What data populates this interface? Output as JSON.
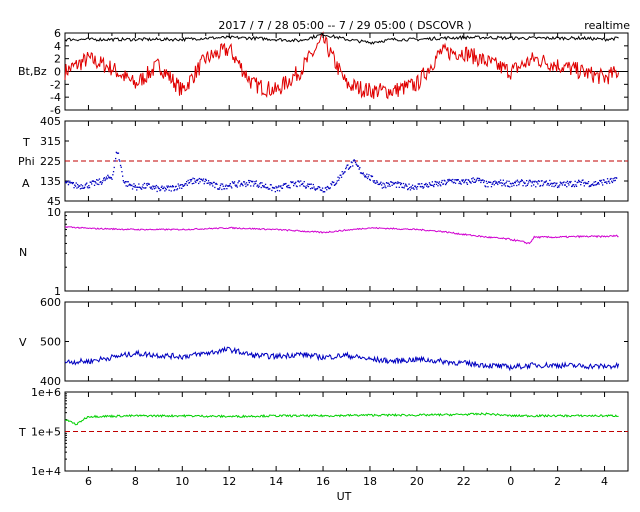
{
  "header": {
    "title": "2017 / 7 / 28   05:00 --  7 / 29   05:00 ( DSCOVR )",
    "mode": "realtime"
  },
  "x_axis": {
    "label": "UT",
    "tick_labels": [
      "6",
      "8",
      "10",
      "12",
      "14",
      "16",
      "18",
      "20",
      "22",
      "0",
      "2",
      "4"
    ],
    "tick_hours": [
      6,
      8,
      10,
      12,
      14,
      16,
      18,
      20,
      22,
      24,
      26,
      28
    ],
    "range_hours": [
      5,
      29
    ]
  },
  "colors": {
    "bt": "#000000",
    "bz": "#e00000",
    "phi": "#0000c0",
    "density": "#d000d0",
    "speed": "#0000c0",
    "temperature": "#00d000",
    "reference": "#c00000"
  },
  "panels": {
    "mag": {
      "ylabel": "Bt,Bz",
      "ylim": [
        -6,
        6
      ],
      "tick_labels": [
        "6",
        "4",
        "2",
        "0",
        "-2",
        "-4",
        "-6"
      ],
      "tick_values": [
        6,
        4,
        2,
        0,
        -2,
        -4,
        -6
      ]
    },
    "phi": {
      "ylabel_lines": [
        "T",
        "Phi",
        "A"
      ],
      "ylim": [
        45,
        405
      ],
      "tick_labels": [
        "405",
        "315",
        "225",
        "135",
        "45"
      ],
      "tick_values": [
        405,
        315,
        225,
        135,
        45
      ],
      "reference_value": 225
    },
    "density": {
      "ylabel": "N",
      "ylim": [
        1,
        10
      ],
      "scale": "log",
      "tick_labels": [
        "10",
        "1"
      ],
      "tick_values": [
        10,
        1
      ]
    },
    "speed": {
      "ylabel": "V",
      "ylim": [
        400,
        600
      ],
      "tick_labels": [
        "600",
        "500",
        "400"
      ],
      "tick_values": [
        600,
        500,
        400
      ]
    },
    "temperature": {
      "ylabel": "T",
      "ylim": [
        10000,
        1000000
      ],
      "scale": "log",
      "tick_labels": [
        "1e+6",
        "1e+5",
        "1e+4"
      ],
      "tick_values": [
        1000000,
        100000,
        10000
      ],
      "reference_value": 100000
    }
  },
  "chart_data": [
    {
      "type": "line",
      "title": "2017 / 7 / 28   05:00 --  7 / 29   05:00 ( DSCOVR )",
      "xlabel": "UT",
      "ylabel": "Bt,Bz",
      "ylim": [
        -6,
        6
      ],
      "x": [
        5,
        6,
        7,
        8,
        9,
        10,
        11,
        12,
        13,
        14,
        15,
        16,
        17,
        18,
        19,
        20,
        21,
        22,
        23,
        24,
        25,
        26,
        27,
        28,
        28.6
      ],
      "series": [
        {
          "name": "Bt",
          "values": [
            5.0,
            5.0,
            5.0,
            5.0,
            5.0,
            5.0,
            5.2,
            5.3,
            5.2,
            5.0,
            4.8,
            5.8,
            5.0,
            4.5,
            5.0,
            5.0,
            5.2,
            5.3,
            5.3,
            5.2,
            5.2,
            5.2,
            5.2,
            5.0,
            5.2
          ]
        },
        {
          "name": "Bz",
          "values": [
            0.0,
            2.0,
            0.5,
            -2.0,
            1.0,
            -3.0,
            2.0,
            3.5,
            -2.0,
            -3.0,
            0.0,
            5.0,
            -2.0,
            -3.0,
            -3.0,
            -2.0,
            3.0,
            3.0,
            1.5,
            0.0,
            2.0,
            1.0,
            0.0,
            -1.0,
            0.0
          ]
        }
      ]
    },
    {
      "type": "scatter",
      "ylabel": "Phi",
      "ylim": [
        45,
        405
      ],
      "x": [
        5,
        5.5,
        6,
        6.5,
        7,
        7.2,
        7.5,
        8,
        8.5,
        9,
        9.5,
        10,
        10.5,
        11,
        11.5,
        12,
        12.5,
        13,
        13.5,
        14,
        14.5,
        15,
        15.5,
        16,
        16.5,
        17,
        17.3,
        17.6,
        18,
        18.5,
        19,
        19.5,
        20,
        20.5,
        21,
        21.5,
        22,
        22.5,
        23,
        23.5,
        24,
        24.5,
        25,
        25.5,
        26,
        26.5,
        27,
        27.5,
        28,
        28.5
      ],
      "series": [
        {
          "name": "Phi",
          "values": [
            130,
            115,
            120,
            135,
            160,
            280,
            130,
            110,
            115,
            100,
            105,
            120,
            140,
            135,
            110,
            120,
            125,
            130,
            115,
            100,
            120,
            125,
            115,
            100,
            130,
            200,
            220,
            180,
            150,
            120,
            125,
            110,
            115,
            120,
            125,
            140,
            130,
            145,
            120,
            130,
            125,
            130,
            125,
            130,
            120,
            125,
            130,
            125,
            135,
            140
          ]
        }
      ]
    },
    {
      "type": "line",
      "ylabel": "N",
      "ylim": [
        1,
        10
      ],
      "x": [
        5,
        6,
        8,
        10,
        12,
        14,
        16,
        18,
        20,
        21,
        22,
        23,
        24,
        24.8,
        25,
        26,
        27,
        28,
        28.6
      ],
      "series": [
        {
          "name": "N",
          "values": [
            6.5,
            6.2,
            6.0,
            6.0,
            6.3,
            6.0,
            5.5,
            6.3,
            6.0,
            5.7,
            5.2,
            4.8,
            4.5,
            4.0,
            4.8,
            4.8,
            4.9,
            4.9,
            5.0
          ]
        }
      ]
    },
    {
      "type": "line",
      "ylabel": "V",
      "ylim": [
        400,
        600
      ],
      "x": [
        5,
        6,
        7,
        8,
        9,
        10,
        11,
        12,
        13,
        14,
        15,
        16,
        17,
        18,
        19,
        20,
        21,
        22,
        23,
        24,
        25,
        26,
        27,
        28,
        28.6
      ],
      "series": [
        {
          "name": "V",
          "values": [
            448,
            450,
            460,
            470,
            465,
            462,
            470,
            480,
            465,
            462,
            468,
            460,
            465,
            455,
            450,
            455,
            450,
            445,
            440,
            435,
            440,
            440,
            438,
            437,
            438
          ]
        }
      ]
    },
    {
      "type": "line",
      "ylabel": "T",
      "ylim": [
        10000,
        1000000
      ],
      "x": [
        5,
        5.5,
        6,
        8,
        10,
        12,
        14,
        16,
        18,
        20,
        22,
        23,
        24,
        26,
        28,
        28.6
      ],
      "series": [
        {
          "name": "T",
          "values": [
            200000,
            150000,
            240000,
            250000,
            250000,
            240000,
            250000,
            250000,
            260000,
            260000,
            270000,
            280000,
            250000,
            250000,
            250000,
            250000
          ]
        }
      ]
    }
  ]
}
